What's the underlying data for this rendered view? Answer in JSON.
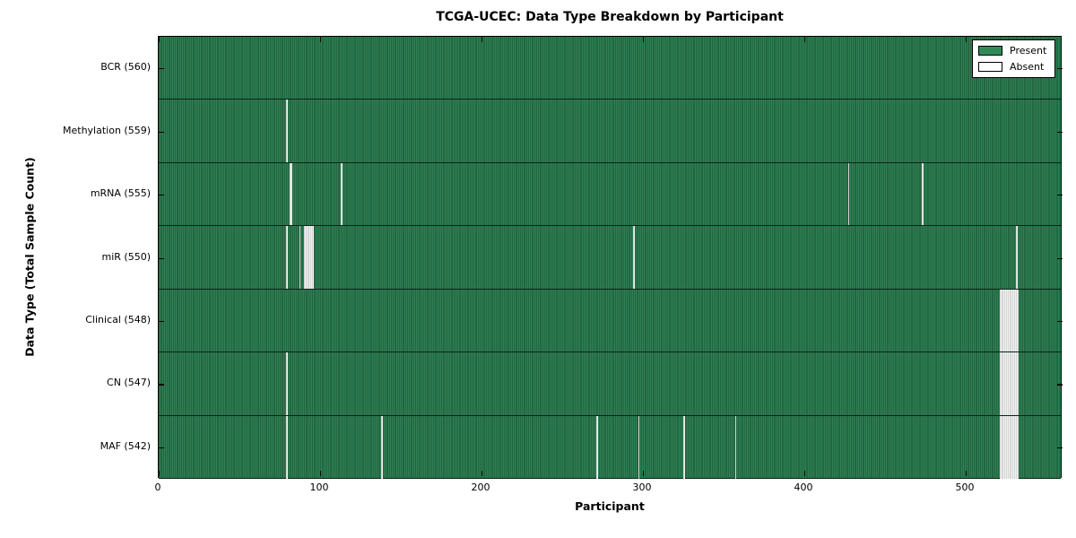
{
  "chart_data": {
    "type": "heatmap",
    "title": "TCGA-UCEC: Data Type Breakdown by Participant",
    "xlabel": "Participant",
    "ylabel": "Data Type (Total Sample Count)",
    "x_ticks": [
      0,
      100,
      200,
      300,
      400,
      500
    ],
    "x_range": [
      0,
      560
    ],
    "n_participants": 560,
    "grid": "row-separators-only",
    "legend_position": "upper-right",
    "legend": [
      {
        "label": "Present",
        "color": "#2e8b57"
      },
      {
        "label": "Absent",
        "color": "#ffffff"
      }
    ],
    "cell_colors": {
      "present_fill": "#2e8154",
      "present_edge": "#1a4b2f",
      "absent_fill": "#f0f0f0",
      "absent_edge": "#bdbdbd"
    },
    "rows": [
      {
        "data_type": "BCR",
        "total": 560,
        "label": "BCR (560)",
        "absent_participants": []
      },
      {
        "data_type": "Methylation",
        "total": 559,
        "label": "Methylation (559)",
        "absent_participants": [
          79
        ]
      },
      {
        "data_type": "mRNA",
        "total": 555,
        "label": "mRNA (555)",
        "absent_participants": [
          81,
          82,
          113,
          427,
          473
        ]
      },
      {
        "data_type": "miR",
        "total": 550,
        "label": "miR (550)",
        "absent_participants": [
          79,
          87,
          90,
          91,
          92,
          93,
          94,
          95,
          294,
          531
        ]
      },
      {
        "data_type": "Clinical",
        "total": 548,
        "label": "Clinical (548)",
        "absent_participants": [
          521,
          522,
          523,
          524,
          525,
          526,
          527,
          528,
          529,
          530,
          531,
          532
        ]
      },
      {
        "data_type": "CN",
        "total": 547,
        "label": "CN (547)",
        "absent_participants": [
          79,
          521,
          522,
          523,
          524,
          525,
          526,
          527,
          528,
          529,
          530,
          531,
          532
        ]
      },
      {
        "data_type": "MAF",
        "total": 542,
        "label": "MAF (542)",
        "absent_participants": [
          79,
          138,
          271,
          297,
          325,
          357,
          521,
          522,
          523,
          524,
          525,
          526,
          527,
          528,
          529,
          530,
          531,
          532
        ]
      }
    ]
  }
}
